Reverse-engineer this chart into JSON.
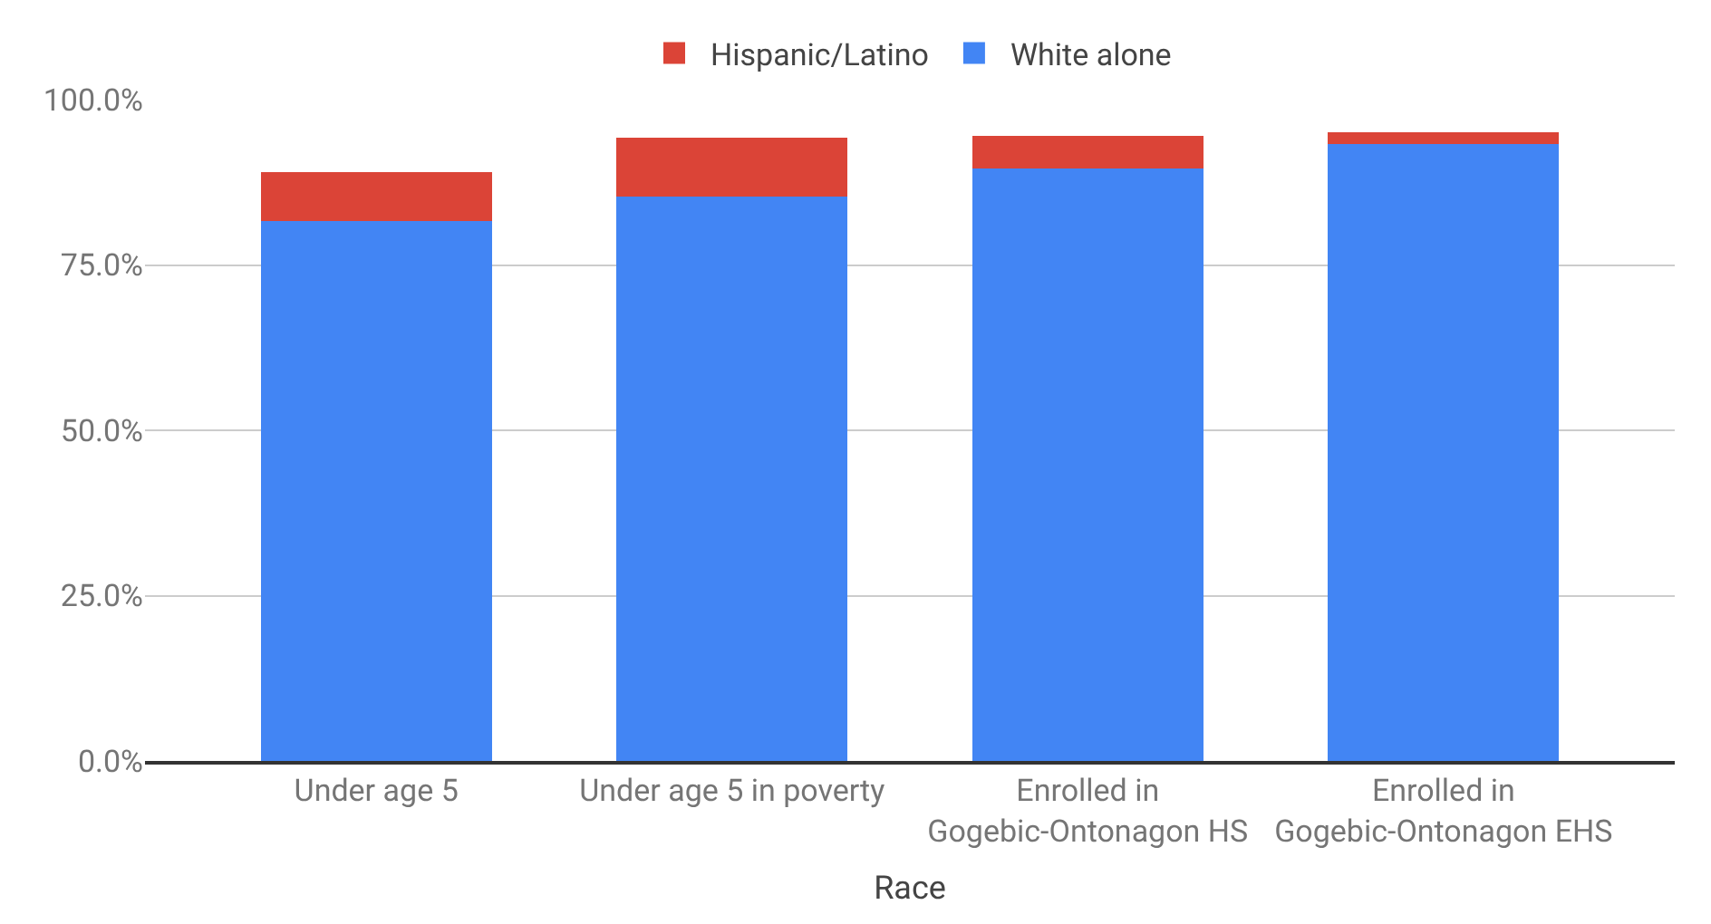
{
  "chart_data": {
    "type": "bar",
    "stacked": true,
    "xlabel": "Race",
    "categories": [
      "Under age 5",
      "Under age 5 in poverty",
      "Enrolled in Gogebic-Ontonagon HS",
      "Enrolled in Gogebic-Ontonagon EHS"
    ],
    "series": [
      {
        "name": "White alone",
        "color": "#4285f4",
        "values": [
          81.7,
          85.3,
          89.6,
          93.3
        ]
      },
      {
        "name": "Hispanic/Latino",
        "color": "#db4437",
        "values": [
          7.3,
          8.9,
          4.9,
          1.8
        ]
      }
    ],
    "ylim": [
      0,
      100
    ],
    "yticks": [
      {
        "value": 0,
        "label": "0.0%"
      },
      {
        "value": 25,
        "label": "25.0%"
      },
      {
        "value": 50,
        "label": "50.0%"
      },
      {
        "value": 75,
        "label": "75.0%"
      },
      {
        "value": 100,
        "label": "100.0%"
      }
    ],
    "grid": "y",
    "legend": "top"
  }
}
